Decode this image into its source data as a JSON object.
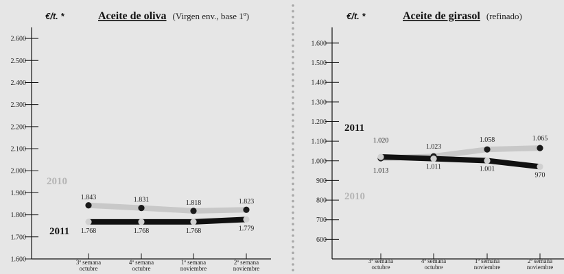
{
  "chart_data": [
    {
      "type": "line",
      "unit_label": "€/t. *",
      "title": "Aceite de oliva",
      "subtitle": "(Virgen env., base 1º)",
      "categories": [
        [
          "3ª semana",
          "octubre"
        ],
        [
          "4ª semana",
          "octubre"
        ],
        [
          "1ª semana",
          "noviembre"
        ],
        [
          "2ª semana",
          "noviembre"
        ]
      ],
      "ylim": [
        1600,
        2650
      ],
      "yticks": [
        1600,
        1700,
        1800,
        1900,
        2000,
        2100,
        2200,
        2300,
        2400,
        2500,
        2600
      ],
      "ytick_labels": [
        "1.600",
        "1.700",
        "1.800",
        "1.900",
        "2.000",
        "2.100",
        "2.200",
        "2.300",
        "2.400",
        "2.500",
        "2.600"
      ],
      "series": [
        {
          "name": "2010",
          "color": "#c8c8c8",
          "marker": "#1a1a1a",
          "values": [
            1843,
            1831,
            1818,
            1823
          ],
          "labels": [
            "1.843",
            "1.831",
            "1.818",
            "1.823"
          ],
          "label_pos": "above"
        },
        {
          "name": "2011",
          "color": "#111111",
          "marker": "#d0d0d0",
          "values": [
            1768,
            1768,
            1768,
            1779
          ],
          "labels": [
            "1.768",
            "1.768",
            "1.768",
            "1.779"
          ],
          "label_pos": "below"
        }
      ]
    },
    {
      "type": "line",
      "unit_label": "€/t. *",
      "title": "Aceite de girasol",
      "subtitle": "(refinado)",
      "categories": [
        [
          "3ª semana",
          "octubre"
        ],
        [
          "4ª semana",
          "octubre"
        ],
        [
          "1ª semana",
          "noviembre"
        ],
        [
          "2ª semana",
          "noviembre"
        ]
      ],
      "ylim": [
        500,
        1680
      ],
      "yticks": [
        600,
        700,
        800,
        900,
        1000,
        1100,
        1200,
        1300,
        1400,
        1500,
        1600
      ],
      "ytick_labels": [
        "600",
        "700",
        "800",
        "900",
        "1.000",
        "1.100",
        "1.200",
        "1.300",
        "1.400",
        "1.500",
        "1.600"
      ],
      "series": [
        {
          "name": "2010",
          "color": "#c8c8c8",
          "marker": "#1a1a1a",
          "values": [
            1013,
            1023,
            1058,
            1065
          ],
          "labels": [
            "1.013",
            "1.023",
            "1.058",
            "1.065"
          ],
          "label_pos": "mixed"
        },
        {
          "name": "2011",
          "color": "#111111",
          "marker": "#d0d0d0",
          "values": [
            1020,
            1011,
            1001,
            970
          ],
          "labels": [
            "1.020",
            "1.011",
            "1.001",
            "970"
          ],
          "label_pos": "mixed"
        }
      ]
    }
  ]
}
